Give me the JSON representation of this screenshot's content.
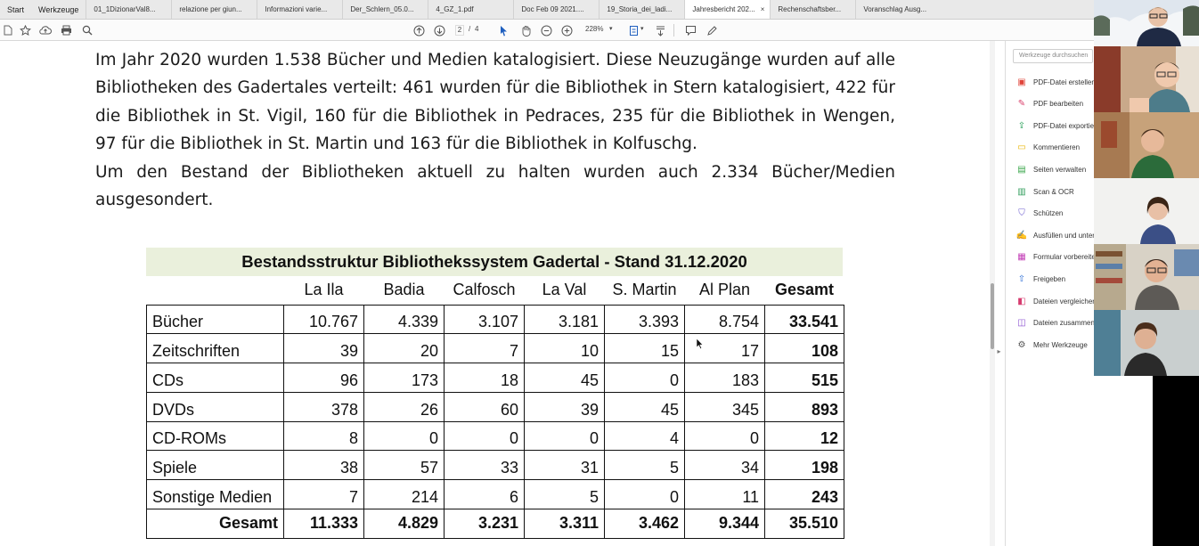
{
  "menu": {
    "start": "Start",
    "tools": "Werkzeuge"
  },
  "tabs": [
    {
      "title": "01_1DizionarVal8...",
      "active": false
    },
    {
      "title": "relazione per giun...",
      "active": false
    },
    {
      "title": "Informazioni varie...",
      "active": false
    },
    {
      "title": "Der_Schlern_05.0...",
      "active": false
    },
    {
      "title": "4_GZ_1.pdf",
      "active": false
    },
    {
      "title": "Doc Feb 09 2021....",
      "active": false
    },
    {
      "title": "19_Storia_dei_ladi...",
      "active": false
    },
    {
      "title": "Jahresbericht 202...",
      "active": true
    },
    {
      "title": "Rechenschaftsber...",
      "active": false
    },
    {
      "title": "Voranschlag Ausg...",
      "active": false
    }
  ],
  "toolbar": {
    "page_current": "2",
    "page_sep": "/",
    "page_total": "4",
    "zoom": "228%"
  },
  "document": {
    "paragraph1": "Im Jahr 2020 wurden 1.538 Bücher und Medien katalogisiert. Diese Neuzugänge wurden auf alle Bibliotheken des Gadertales verteilt: 461 wurden für die Bibliothek in Stern katalogisiert, 422 für die Bibliothek in St. Vigil, 160 für die Bibliothek in Pedraces, 235 für die Bibliothek in Wengen, 97 für die Bibliothek in St. Martin und 163 für die Bibliothek in Kolfuschg.",
    "paragraph2": "Um den Bestand der Bibliotheken aktuell zu halten wurden auch 2.334 Bücher/Medien ausgesondert.",
    "table_title": "Bestandsstruktur Bibliothekssystem Gadertal - Stand 31.12.2020",
    "columns": [
      "La Ila",
      "Badia",
      "Calfosch",
      "La Val",
      "S. Martin",
      "Al Plan",
      "Gesamt"
    ],
    "rows": [
      {
        "label": "Bücher",
        "values": [
          "10.767",
          "4.339",
          "3.107",
          "3.181",
          "3.393",
          "8.754"
        ],
        "total": "33.541"
      },
      {
        "label": "Zeitschriften",
        "values": [
          "39",
          "20",
          "7",
          "10",
          "15",
          "17"
        ],
        "total": "108"
      },
      {
        "label": "CDs",
        "values": [
          "96",
          "173",
          "18",
          "45",
          "0",
          "183"
        ],
        "total": "515"
      },
      {
        "label": "DVDs",
        "values": [
          "378",
          "26",
          "60",
          "39",
          "45",
          "345"
        ],
        "total": "893"
      },
      {
        "label": "CD-ROMs",
        "values": [
          "8",
          "0",
          "0",
          "0",
          "4",
          "0"
        ],
        "total": "12"
      },
      {
        "label": "Spiele",
        "values": [
          "38",
          "57",
          "33",
          "31",
          "5",
          "34"
        ],
        "total": "198"
      },
      {
        "label": "Sonstige Medien",
        "values": [
          "7",
          "214",
          "6",
          "5",
          "0",
          "11"
        ],
        "total": "243"
      }
    ],
    "total_row": {
      "label": "Gesamt",
      "values": [
        "11.333",
        "4.829",
        "3.231",
        "3.311",
        "3.462",
        "9.344"
      ],
      "total": "35.510"
    }
  },
  "tools_panel": {
    "search_placeholder": "Werkzeuge durchsuchen",
    "items": [
      {
        "label": "PDF-Datei erstellen",
        "icon": "pdf-create-icon",
        "color": "#e0443a"
      },
      {
        "label": "PDF bearbeiten",
        "icon": "pdf-edit-icon",
        "color": "#d9416b"
      },
      {
        "label": "PDF-Datei exportieren",
        "icon": "pdf-export-icon",
        "color": "#2aa05a"
      },
      {
        "label": "Kommentieren",
        "icon": "comment-icon",
        "color": "#e9b400"
      },
      {
        "label": "Seiten verwalten",
        "icon": "pages-icon",
        "color": "#3aa64a"
      },
      {
        "label": "Scan & OCR",
        "icon": "scan-icon",
        "color": "#2f9c5a"
      },
      {
        "label": "Schützen",
        "icon": "shield-icon",
        "color": "#6a5acd"
      },
      {
        "label": "Ausfüllen und unterschreiben",
        "icon": "sign-icon",
        "color": "#a444c0"
      },
      {
        "label": "Formular vorbereiten",
        "icon": "form-icon",
        "color": "#c23cb5"
      },
      {
        "label": "Freigeben",
        "icon": "share-icon",
        "color": "#2f6fd6"
      },
      {
        "label": "Dateien vergleichen",
        "icon": "compare-icon",
        "color": "#d63b6f"
      },
      {
        "label": "Dateien zusammenführen",
        "icon": "combine-icon",
        "color": "#8a4fd0"
      },
      {
        "label": "Mehr Werkzeuge",
        "icon": "more-tools-icon",
        "color": "#555555"
      }
    ]
  },
  "video_participants": [
    {
      "name": "participant-1"
    },
    {
      "name": "participant-2"
    },
    {
      "name": "participant-3"
    },
    {
      "name": "participant-4"
    },
    {
      "name": "participant-5"
    },
    {
      "name": "participant-6"
    }
  ]
}
